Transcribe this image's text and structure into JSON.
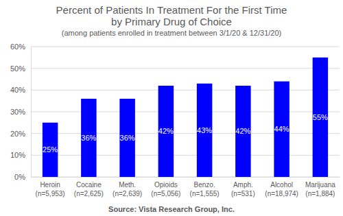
{
  "chart_data": {
    "type": "bar",
    "title": "Percent of Patients In Treatment For the First Time\nby Primary Drug of Choice",
    "subtitle": "(among patients enrolled in treatment between 3/1/20 & 12/31/20)",
    "annotations": [
      "Source: Vista Research Group, Inc."
    ],
    "categories": [
      "Heroin\n(n=5,953)",
      "Cocaine\n(n=2,625)",
      "Meth.\n(n=2,639)",
      "Opioids\n(n=5,056)",
      "Benzo.\n(n=1,555)",
      "Amph.\n(n=531)",
      "Alcohol\n(n=18,974)",
      "Marijuana\n(n=1,884)"
    ],
    "values": [
      25,
      36,
      36,
      42,
      43,
      42,
      44,
      55
    ],
    "value_labels": [
      "25%",
      "36%",
      "36%",
      "42%",
      "43%",
      "42%",
      "44%",
      "55%"
    ],
    "data_labels": true,
    "color": "#0000ff",
    "ylim": [
      0,
      60
    ],
    "yticks": [
      {
        "value": 0,
        "label": "0%"
      },
      {
        "value": 10,
        "label": "10%"
      },
      {
        "value": 20,
        "label": "20%"
      },
      {
        "value": 30,
        "label": "30%"
      },
      {
        "value": 40,
        "label": "40%"
      },
      {
        "value": 50,
        "label": "50%"
      },
      {
        "value": 60,
        "label": "60%"
      }
    ],
    "grid": true
  }
}
